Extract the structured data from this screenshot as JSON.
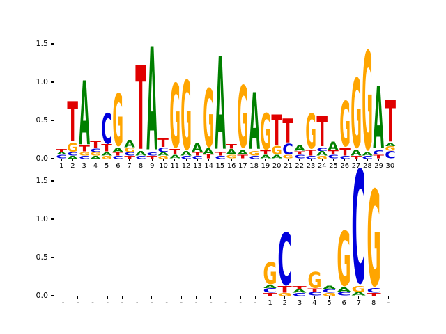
{
  "figure": {
    "background": "#ffffff"
  },
  "colors": {
    "A": "#008000",
    "C": "#0000dd",
    "G": "#ffa500",
    "T": "#e00000"
  },
  "chart_data": [
    {
      "type": "sequence-logo",
      "title": "",
      "xlabel": "",
      "ylabel": "",
      "ylim": [
        0,
        1.6
      ],
      "yticks": [
        0.0,
        0.5,
        1.0,
        1.5
      ],
      "yticklabels": [
        "0.0",
        "0.5",
        "1.0",
        "1.5"
      ],
      "xticklabels": [
        "1",
        "2",
        "3",
        "4",
        "5",
        "6",
        "7",
        "8",
        "9",
        "10",
        "11",
        "12",
        "13",
        "14",
        "15",
        "16",
        "17",
        "18",
        "19",
        "20",
        "21",
        "22",
        "23",
        "24",
        "25",
        "26",
        "27",
        "28",
        "29",
        "30"
      ],
      "stacks": [
        [
          [
            "C",
            0.05
          ],
          [
            "A",
            0.04
          ],
          [
            "T",
            0.04
          ]
        ],
        [
          [
            "A",
            0.04
          ],
          [
            "C",
            0.05
          ],
          [
            "G",
            0.12
          ],
          [
            "T",
            0.55
          ]
        ],
        [
          [
            "C",
            0.04
          ],
          [
            "G",
            0.05
          ],
          [
            "T",
            0.08
          ],
          [
            "A",
            0.88
          ]
        ],
        [
          [
            "A",
            0.04
          ],
          [
            "G",
            0.05
          ],
          [
            "C",
            0.05
          ],
          [
            "T",
            0.1
          ]
        ],
        [
          [
            "G",
            0.04
          ],
          [
            "A",
            0.05
          ],
          [
            "T",
            0.1
          ],
          [
            "C",
            0.42
          ]
        ],
        [
          [
            "C",
            0.04
          ],
          [
            "T",
            0.05
          ],
          [
            "A",
            0.06
          ],
          [
            "G",
            0.72
          ]
        ],
        [
          [
            "T",
            0.04
          ],
          [
            "C",
            0.05
          ],
          [
            "G",
            0.06
          ],
          [
            "A",
            0.1
          ]
        ],
        [
          [
            "C",
            0.04
          ],
          [
            "A",
            0.06
          ],
          [
            "T",
            1.15
          ]
        ],
        [
          [
            "T",
            0.04
          ],
          [
            "C",
            0.04
          ],
          [
            "A",
            1.42
          ]
        ],
        [
          [
            "G",
            0.04
          ],
          [
            "A",
            0.05
          ],
          [
            "C",
            0.06
          ],
          [
            "T",
            0.12
          ]
        ],
        [
          [
            "A",
            0.05
          ],
          [
            "T",
            0.08
          ],
          [
            "G",
            0.88
          ]
        ],
        [
          [
            "C",
            0.04
          ],
          [
            "A",
            0.06
          ],
          [
            "G",
            0.95
          ]
        ],
        [
          [
            "C",
            0.04
          ],
          [
            "T",
            0.05
          ],
          [
            "A",
            0.12
          ]
        ],
        [
          [
            "T",
            0.06
          ],
          [
            "A",
            0.08
          ],
          [
            "G",
            0.8
          ]
        ],
        [
          [
            "C",
            0.04
          ],
          [
            "T",
            0.05
          ],
          [
            "A",
            1.28
          ]
        ],
        [
          [
            "G",
            0.05
          ],
          [
            "A",
            0.08
          ],
          [
            "T",
            0.06
          ]
        ],
        [
          [
            "T",
            0.05
          ],
          [
            "A",
            0.07
          ],
          [
            "G",
            0.85
          ]
        ],
        [
          [
            "C",
            0.04
          ],
          [
            "G",
            0.06
          ],
          [
            "A",
            0.78
          ]
        ],
        [
          [
            "A",
            0.05
          ],
          [
            "T",
            0.06
          ],
          [
            "G",
            0.5
          ]
        ],
        [
          [
            "A",
            0.05
          ],
          [
            "G",
            0.12
          ],
          [
            "T",
            0.42
          ]
        ],
        [
          [
            "G",
            0.05
          ],
          [
            "C",
            0.15
          ],
          [
            "T",
            0.33
          ]
        ],
        [
          [
            "C",
            0.05
          ],
          [
            "T",
            0.05
          ],
          [
            "A",
            0.08
          ]
        ],
        [
          [
            "C",
            0.04
          ],
          [
            "T",
            0.08
          ],
          [
            "G",
            0.48
          ]
        ],
        [
          [
            "G",
            0.04
          ],
          [
            "A",
            0.06
          ],
          [
            "C",
            0.05
          ],
          [
            "T",
            0.42
          ]
        ],
        [
          [
            "C",
            0.05
          ],
          [
            "T",
            0.06
          ],
          [
            "A",
            0.12
          ]
        ],
        [
          [
            "C",
            0.04
          ],
          [
            "T",
            0.1
          ],
          [
            "G",
            0.62
          ]
        ],
        [
          [
            "T",
            0.04
          ],
          [
            "A",
            0.08
          ],
          [
            "G",
            0.95
          ]
        ],
        [
          [
            "C",
            0.04
          ],
          [
            "A",
            0.05
          ],
          [
            "G",
            1.35
          ]
        ],
        [
          [
            "T",
            0.05
          ],
          [
            "C",
            0.06
          ],
          [
            "A",
            0.85
          ]
        ],
        [
          [
            "C",
            0.1
          ],
          [
            "G",
            0.06
          ],
          [
            "A",
            0.05
          ],
          [
            "T",
            0.57
          ]
        ]
      ]
    },
    {
      "type": "sequence-logo",
      "title": "",
      "xlabel": "",
      "ylabel": "",
      "ylim": [
        0,
        1.75
      ],
      "yticks": [
        0.0,
        0.5,
        1.0,
        1.5
      ],
      "yticklabels": [
        "0.0",
        "0.5",
        "1.0",
        "1.5"
      ],
      "xticklabels": [
        "-",
        "-",
        "-",
        "-",
        "-",
        "-",
        "-",
        "-",
        "-",
        "-",
        "-",
        "-",
        "-",
        "-",
        "1",
        "2",
        "3",
        "4",
        "5",
        "6",
        "7",
        "8",
        "-"
      ],
      "stacks": [
        [],
        [],
        [],
        [],
        [],
        [],
        [],
        [],
        [],
        [],
        [],
        [],
        [],
        [],
        [
          [
            "T",
            0.04
          ],
          [
            "C",
            0.06
          ],
          [
            "A",
            0.05
          ],
          [
            "G",
            0.3
          ]
        ],
        [
          [
            "G",
            0.04
          ],
          [
            "T",
            0.09
          ],
          [
            "C",
            0.72
          ]
        ],
        [
          [
            "C",
            0.04
          ],
          [
            "A",
            0.05
          ],
          [
            "T",
            0.04
          ]
        ],
        [
          [
            "C",
            0.05
          ],
          [
            "T",
            0.05
          ],
          [
            "G",
            0.22
          ]
        ],
        [
          [
            "G",
            0.04
          ],
          [
            "C",
            0.05
          ],
          [
            "A",
            0.05
          ]
        ],
        [
          [
            "C",
            0.05
          ],
          [
            "A",
            0.06
          ],
          [
            "G",
            0.75
          ]
        ],
        [
          [
            "A",
            0.05
          ],
          [
            "G",
            0.08
          ],
          [
            "C",
            1.55
          ]
        ],
        [
          [
            "T",
            0.04
          ],
          [
            "C",
            0.06
          ],
          [
            "G",
            1.32
          ]
        ],
        []
      ]
    }
  ]
}
